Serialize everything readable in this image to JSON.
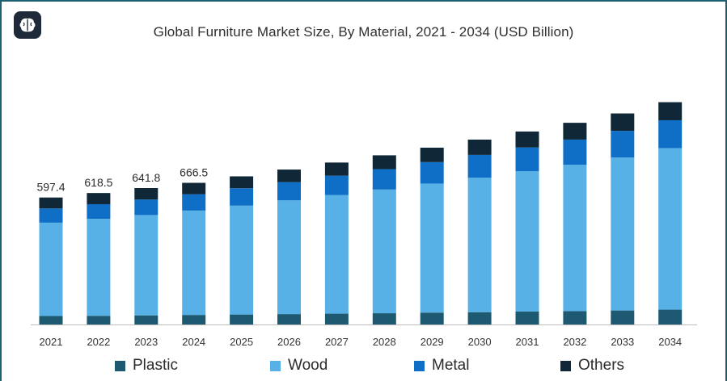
{
  "title": "Global Furniture Market Size, By Material, 2021 - 2034 (USD Billion)",
  "icons": {
    "logo": "brain-logo-icon"
  },
  "colors": {
    "plastic": "#1d5a72",
    "wood": "#57b1e6",
    "metal": "#0f6fc6",
    "others": "#0f2736",
    "axis": "#bdbdbd",
    "text": "#2b2b2b"
  },
  "legend": [
    {
      "key": "plastic",
      "label": "Plastic"
    },
    {
      "key": "wood",
      "label": "Wood"
    },
    {
      "key": "metal",
      "label": "Metal"
    },
    {
      "key": "others",
      "label": "Others"
    }
  ],
  "chart_data": {
    "type": "bar",
    "stacked": true,
    "title": "Global Furniture Market Size, By Material, 2021 - 2034 (USD Billion)",
    "xlabel": "",
    "ylabel": "",
    "ylim": [
      0,
      1200
    ],
    "grid": false,
    "legend_position": "bottom",
    "categories": [
      "2021",
      "2022",
      "2023",
      "2024",
      "2025",
      "2026",
      "2027",
      "2028",
      "2029",
      "2030",
      "2031",
      "2032",
      "2033",
      "2034"
    ],
    "series": [
      {
        "name": "Plastic",
        "key": "plastic",
        "values": [
          40,
          41,
          43,
          45,
          47,
          49,
          51,
          53,
          56,
          58,
          61,
          63,
          66,
          70
        ]
      },
      {
        "name": "Wood",
        "key": "wood",
        "values": [
          439,
          456,
          472,
          491,
          512,
          535,
          558,
          582,
          607,
          633,
          660,
          689,
          720,
          760
        ]
      },
      {
        "name": "Metal",
        "key": "metal",
        "values": [
          67,
          69,
          73,
          77,
          82,
          86,
          91,
          96,
          101,
          107,
          112,
          118,
          125,
          131
        ]
      },
      {
        "name": "Others",
        "key": "others",
        "values": [
          51.4,
          52.5,
          53.8,
          53.5,
          56,
          59,
          62,
          65,
          68,
          72,
          75,
          79,
          82,
          85
        ]
      }
    ],
    "totals_labels": [
      "597.4",
      "618.5",
      "641.8",
      "666.5",
      "",
      "",
      "",
      "",
      "",
      "",
      "",
      "",
      "",
      ""
    ]
  }
}
